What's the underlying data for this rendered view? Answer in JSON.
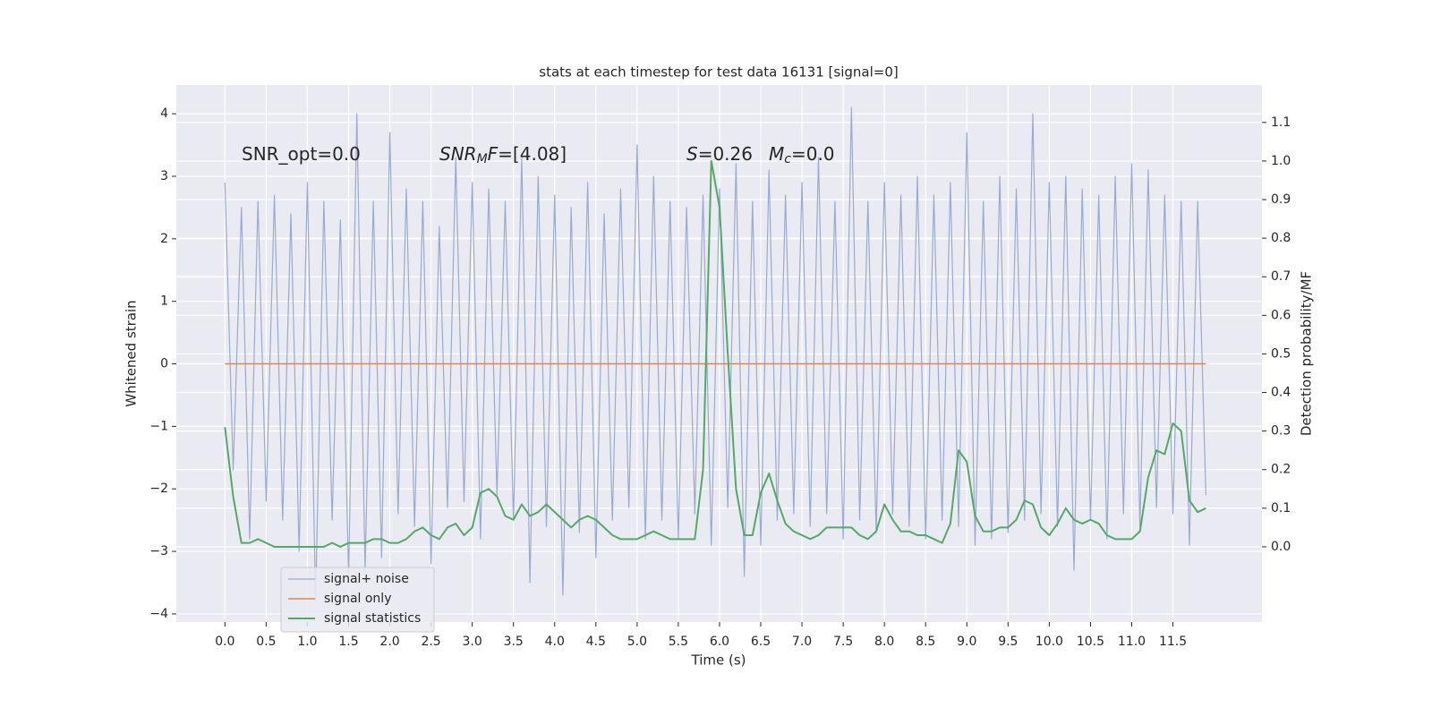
{
  "chart_data": {
    "type": "line",
    "title": "stats at each timestep for test data 16131 [signal=0]",
    "x_label": "Time (s)",
    "y_label": "Whitened strain",
    "y2_label": "Detection probability/MF",
    "grid": true,
    "xlim": [
      -0.59,
      12.58
    ],
    "ylim": [
      -4.13,
      4.46
    ],
    "y2lim": [
      -0.195,
      1.197
    ],
    "xticks": [
      {
        "value": 0,
        "label": "0.0"
      },
      0.5,
      {
        "value": 1,
        "label": "1.0"
      },
      1.5,
      {
        "value": 2,
        "label": "2.0"
      },
      2.5,
      {
        "value": 3,
        "label": "3.0"
      },
      3.5,
      {
        "value": 4,
        "label": "4.0"
      },
      4.5,
      {
        "value": 5,
        "label": "5.0"
      },
      5.5,
      {
        "value": 6,
        "label": "6.0"
      },
      6.5,
      {
        "value": 7,
        "label": "7.0"
      },
      7.5,
      {
        "value": 8,
        "label": "8.0"
      },
      8.5,
      {
        "value": 9,
        "label": "9.0"
      },
      9.5,
      {
        "value": 10,
        "label": "10.0"
      },
      10.5,
      {
        "value": 11,
        "label": "11.0"
      },
      11.5
    ],
    "yticks": [
      {
        "value": -4,
        "label": "−4"
      },
      {
        "value": -3,
        "label": "−3"
      },
      {
        "value": -2,
        "label": "−2"
      },
      {
        "value": -1,
        "label": "−1"
      },
      0,
      1,
      2,
      3,
      4
    ],
    "y2ticks": [
      {
        "value": 0,
        "label": "0.0"
      },
      0.1,
      0.2,
      0.3,
      0.4,
      0.5,
      0.6,
      0.7,
      0.8,
      0.9,
      {
        "value": 1,
        "label": "1.0"
      },
      1.1
    ],
    "x": [
      0,
      0.1,
      0.2,
      0.3,
      0.4,
      0.5,
      0.6,
      0.7,
      0.8,
      0.9,
      1,
      1.1,
      1.2,
      1.3,
      1.4,
      1.5,
      1.6,
      1.7,
      1.8,
      1.9,
      2,
      2.1,
      2.2,
      2.3,
      2.4,
      2.5,
      2.6,
      2.7,
      2.8,
      2.9,
      3,
      3.1,
      3.2,
      3.3,
      3.4,
      3.5,
      3.6,
      3.7,
      3.8,
      3.9,
      4,
      4.1,
      4.2,
      4.3,
      4.4,
      4.5,
      4.6,
      4.7,
      4.8,
      4.9,
      5,
      5.1,
      5.2,
      5.3,
      5.4,
      5.5,
      5.6,
      5.7,
      5.8,
      5.9,
      6,
      6.1,
      6.2,
      6.3,
      6.4,
      6.5,
      6.6,
      6.7,
      6.8,
      6.9,
      7,
      7.1,
      7.2,
      7.3,
      7.4,
      7.5,
      7.6,
      7.7,
      7.8,
      7.9,
      8,
      8.1,
      8.2,
      8.3,
      8.4,
      8.5,
      8.6,
      8.7,
      8.8,
      8.9,
      9,
      9.1,
      9.2,
      9.3,
      9.4,
      9.5,
      9.6,
      9.7,
      9.8,
      9.9,
      10,
      10.1,
      10.2,
      10.3,
      10.4,
      10.5,
      10.6,
      10.7,
      10.8,
      10.9,
      11,
      11.1,
      11.2,
      11.3,
      11.4,
      11.5,
      11.6,
      11.7,
      11.8,
      11.9
    ],
    "series": [
      {
        "name": "signal+ noise",
        "color": "#9aaad0",
        "width": 1.2,
        "values": [
          2.9,
          -1.7,
          2.5,
          -2.8,
          2.6,
          -2.2,
          2.7,
          -2.5,
          2.4,
          -3.0,
          2.9,
          -3.8,
          2.6,
          -2.5,
          2.3,
          -3.4,
          4.0,
          -3.3,
          2.6,
          -3.1,
          3.7,
          -2.4,
          2.8,
          -2.6,
          2.6,
          -3.2,
          2.2,
          -2.3,
          3.3,
          -2.2,
          2.9,
          -2.8,
          2.8,
          -2.1,
          2.6,
          -2.5,
          3.3,
          -3.5,
          3.0,
          -2.6,
          2.7,
          -3.7,
          2.5,
          -2.7,
          2.9,
          -3.1,
          2.4,
          -2.5,
          2.8,
          -2.3,
          3.5,
          -2.8,
          3.0,
          -2.5,
          2.6,
          -2.8,
          2.5,
          -2.4,
          2.7,
          -2.9,
          2.8,
          -2.3,
          3.2,
          -3.4,
          2.6,
          -2.9,
          3.1,
          -2.5,
          2.7,
          -2.4,
          2.9,
          -2.6,
          3.3,
          -2.4,
          2.6,
          -2.8,
          4.1,
          -2.5,
          2.6,
          -2.7,
          2.9,
          -2.4,
          2.7,
          -2.6,
          3.0,
          -2.8,
          2.7,
          -2.5,
          2.9,
          -2.6,
          3.7,
          -2.9,
          2.6,
          -2.8,
          3.0,
          -2.7,
          2.8,
          -2.5,
          4.0,
          -2.4,
          2.9,
          -2.6,
          3.0,
          -3.3,
          2.8,
          -2.5,
          2.7,
          -2.8,
          3.0,
          -2.4,
          3.2,
          -2.6,
          3.1,
          -2.3,
          2.7,
          -2.4,
          2.6,
          -2.9,
          2.6,
          -2.1
        ]
      },
      {
        "name": "signal only",
        "color": "#dd8452",
        "width": 1.5,
        "values": [
          0,
          0,
          0,
          0,
          0,
          0,
          0,
          0,
          0,
          0,
          0,
          0,
          0,
          0,
          0,
          0,
          0,
          0,
          0,
          0,
          0,
          0,
          0,
          0,
          0,
          0,
          0,
          0,
          0,
          0,
          0,
          0,
          0,
          0,
          0,
          0,
          0,
          0,
          0,
          0,
          0,
          0,
          0,
          0,
          0,
          0,
          0,
          0,
          0,
          0,
          0,
          0,
          0,
          0,
          0,
          0,
          0,
          0,
          0,
          0,
          0,
          0,
          0,
          0,
          0,
          0,
          0,
          0,
          0,
          0,
          0,
          0,
          0,
          0,
          0,
          0,
          0,
          0,
          0,
          0,
          0,
          0,
          0,
          0,
          0,
          0,
          0,
          0,
          0,
          0,
          0,
          0,
          0,
          0,
          0,
          0,
          0,
          0,
          0,
          0,
          0,
          0,
          0,
          0,
          0,
          0,
          0,
          0,
          0,
          0,
          0,
          0,
          0,
          0,
          0,
          0,
          0,
          0,
          0,
          0
        ]
      },
      {
        "name": "signal statistics",
        "color": "#55a868",
        "width": 2,
        "axis": "y2",
        "values": [
          0.31,
          0.13,
          0.01,
          0.01,
          0.02,
          0.01,
          0,
          0,
          0,
          0,
          0,
          0,
          0,
          0.01,
          0,
          0.01,
          0.01,
          0.01,
          0.02,
          0.02,
          0.01,
          0.01,
          0.02,
          0.04,
          0.05,
          0.03,
          0.02,
          0.05,
          0.06,
          0.03,
          0.05,
          0.14,
          0.15,
          0.13,
          0.08,
          0.07,
          0.11,
          0.08,
          0.09,
          0.11,
          0.09,
          0.07,
          0.05,
          0.07,
          0.08,
          0.07,
          0.05,
          0.03,
          0.02,
          0.02,
          0.02,
          0.03,
          0.04,
          0.03,
          0.02,
          0.02,
          0.02,
          0.02,
          0.2,
          1.0,
          0.88,
          0.5,
          0.15,
          0.03,
          0.03,
          0.14,
          0.19,
          0.12,
          0.06,
          0.04,
          0.03,
          0.02,
          0.03,
          0.05,
          0.05,
          0.05,
          0.05,
          0.03,
          0.02,
          0.04,
          0.11,
          0.07,
          0.04,
          0.04,
          0.03,
          0.03,
          0.02,
          0.01,
          0.06,
          0.25,
          0.22,
          0.08,
          0.04,
          0.04,
          0.05,
          0.05,
          0.07,
          0.12,
          0.11,
          0.05,
          0.03,
          0.06,
          0.1,
          0.07,
          0.06,
          0.07,
          0.06,
          0.03,
          0.02,
          0.02,
          0.02,
          0.04,
          0.18,
          0.25,
          0.24,
          0.32,
          0.3,
          0.12,
          0.09,
          0.1
        ]
      }
    ],
    "annotations": [
      [
        {
          "text": "SNR_opt=0.0"
        }
      ],
      [
        {
          "text": "SNR",
          "style": "italic"
        },
        {
          "text": "M",
          "style": "italic-sub"
        },
        {
          "text": "F",
          "style": "italic"
        },
        {
          "text": "=[4.08]"
        }
      ],
      [
        {
          "text": "S",
          "style": "italic"
        },
        {
          "text": "=0.26"
        }
      ],
      [
        {
          "text": "M",
          "style": "italic"
        },
        {
          "text": "c",
          "style": "italic-sub"
        },
        {
          "text": "=0.0"
        }
      ]
    ]
  }
}
